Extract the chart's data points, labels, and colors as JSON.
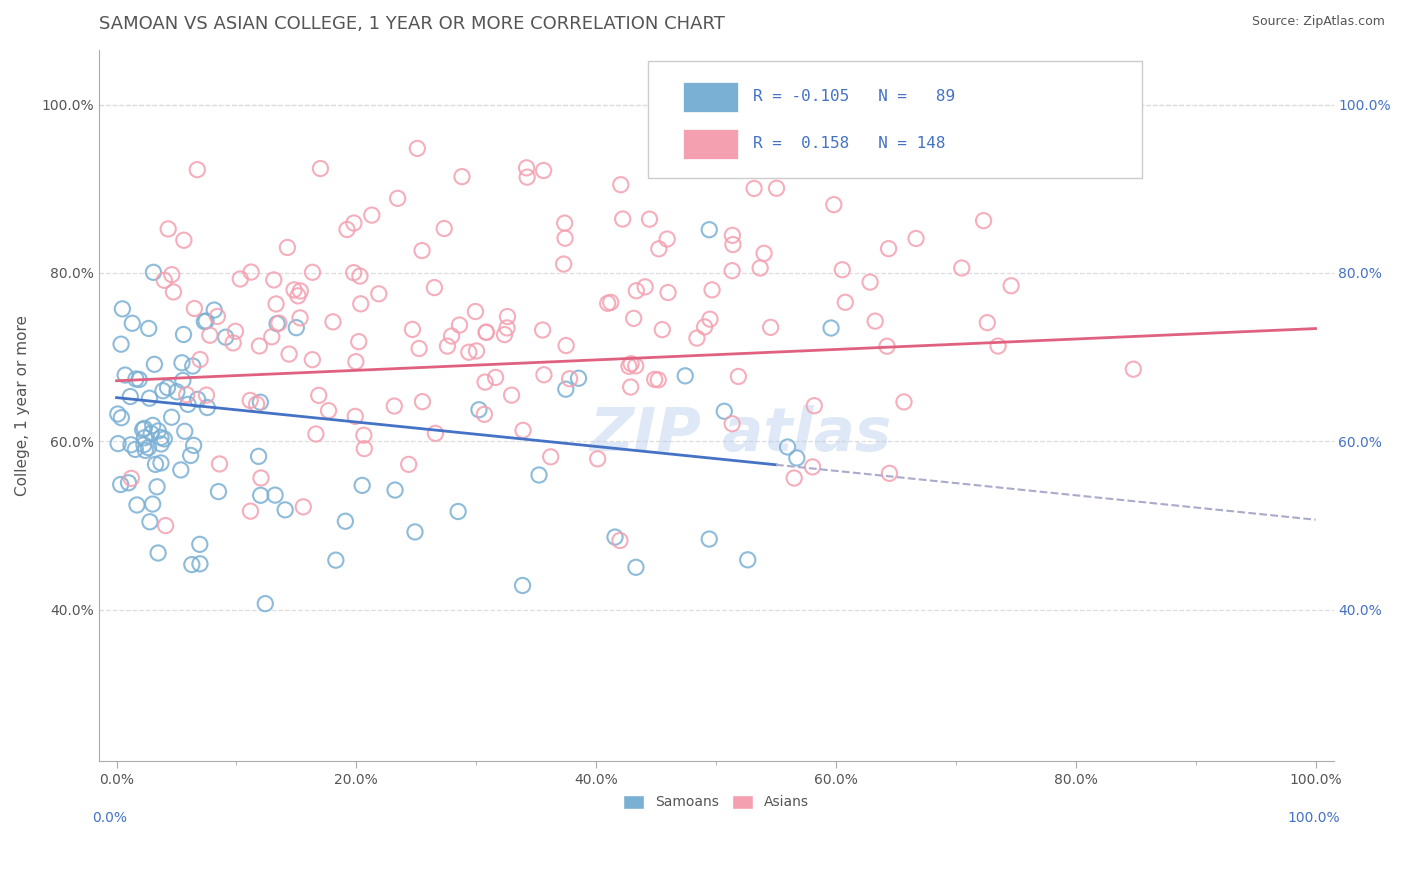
{
  "title": "SAMOAN VS ASIAN COLLEGE, 1 YEAR OR MORE CORRELATION CHART",
  "source": "Source: ZipAtlas.com",
  "ylabel": "College, 1 year or more",
  "samoan_color": "#7ab0d4",
  "asian_color": "#f4a0b0",
  "samoan_line_color": "#4472c4",
  "asian_line_color": "#e06080",
  "dashed_line_color": "#aaaacc",
  "background_color": "#ffffff",
  "grid_color": "#dddddd",
  "samoan_R": -0.105,
  "samoan_N": 89,
  "asian_R": 0.158,
  "asian_N": 148,
  "title_color": "#555555",
  "label_color": "#555555",
  "right_tick_color": "#4472c4"
}
